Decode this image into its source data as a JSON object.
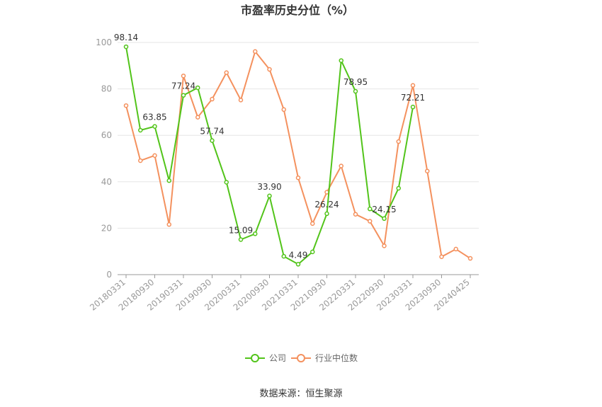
{
  "chart_data": {
    "type": "line",
    "title": "市盈率历史分位（%）",
    "source": "数据来源：恒生聚源",
    "ylim": [
      0,
      100
    ],
    "yticks": [
      0,
      20,
      40,
      60,
      80,
      100
    ],
    "x_tick_labels": [
      "20180331",
      "20180930",
      "20190331",
      "20190930",
      "20200331",
      "20200930",
      "20210331",
      "20210930",
      "20220331",
      "20220930",
      "20230331",
      "20230930",
      "20240425"
    ],
    "x": [
      "20180331",
      "20180630",
      "20180930",
      "20181231",
      "20190331",
      "20190630",
      "20190930",
      "20191231",
      "20200331",
      "20200630",
      "20200930",
      "20201231",
      "20210331",
      "20210630",
      "20210930",
      "20211231",
      "20220331",
      "20220630",
      "20220930",
      "20221231",
      "20230331",
      "20230630",
      "20230930",
      "20231231",
      "20240425"
    ],
    "series": [
      {
        "name": "公司",
        "color": "#52c41a",
        "values": [
          98.14,
          62.2,
          63.85,
          40.5,
          77.24,
          80.5,
          57.74,
          39.8,
          15.09,
          17.6,
          33.9,
          7.9,
          4.49,
          9.8,
          26.24,
          92.2,
          78.95,
          28.3,
          24.15,
          37.2,
          72.21,
          null,
          null,
          null,
          null
        ],
        "labels": {
          "0": "98.14",
          "2": "63.85",
          "4": "77.24",
          "6": "57.74",
          "8": "15.09",
          "10": "33.90",
          "12": "4.49",
          "14": "26.24",
          "16": "78.95",
          "18": "24.15",
          "20": "72.21"
        }
      },
      {
        "name": "行业中位数",
        "color": "#f4915e",
        "values": [
          72.8,
          49.1,
          51.3,
          21.6,
          85.6,
          67.8,
          75.6,
          87.0,
          75.2,
          96.1,
          88.4,
          71.1,
          41.7,
          22.0,
          35.5,
          46.8,
          26.0,
          23.0,
          12.4,
          57.3,
          81.5,
          44.6,
          7.7,
          11.0,
          7.0
        ]
      }
    ],
    "legend_position": "bottom-center",
    "grid": true
  }
}
